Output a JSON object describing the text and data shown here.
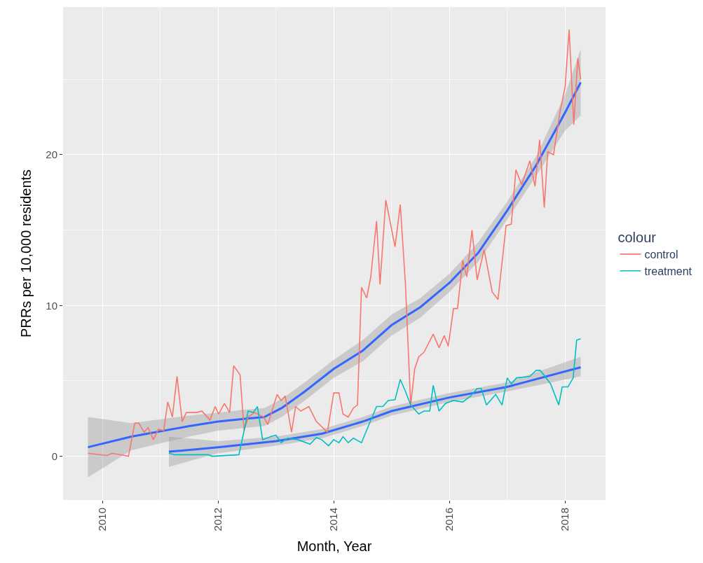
{
  "chart_data": {
    "type": "line",
    "xlabel": "Month, Year",
    "ylabel": "PRRs per 10,000 residents",
    "legend_title": "colour",
    "legend": "right",
    "grid": true,
    "xlim": [
      2009.32,
      2018.7
    ],
    "xticks": [
      2010,
      2012,
      2014,
      2016,
      2018
    ],
    "ylim": [
      -2.9,
      29.8
    ],
    "yticks": [
      0,
      10,
      20
    ],
    "series": [
      {
        "color": "#3366ff",
        "x": [
          2009.75,
          2010.5,
          2011.5,
          2012.0,
          2012.5,
          2012.8,
          2013.1,
          2013.5,
          2014.0,
          2014.5,
          2015.0,
          2015.5,
          2016.0,
          2016.5,
          2017.0,
          2017.5,
          2018.0,
          2018.27
        ],
        "values": [
          0.6,
          1.3,
          2.0,
          2.3,
          2.5,
          2.6,
          3.2,
          4.3,
          5.8,
          7.0,
          8.7,
          9.9,
          11.5,
          13.5,
          16.3,
          19.3,
          22.8,
          24.8
        ],
        "lower": [
          -1.4,
          0.4,
          1.3,
          1.7,
          1.9,
          2.0,
          2.6,
          3.7,
          5.2,
          6.3,
          8.0,
          9.2,
          10.9,
          12.9,
          15.7,
          18.6,
          21.6,
          22.6
        ],
        "upper": [
          2.6,
          2.2,
          2.7,
          2.9,
          3.1,
          3.2,
          3.8,
          4.9,
          6.4,
          7.7,
          9.4,
          10.5,
          12.1,
          14.2,
          16.9,
          19.9,
          24.0,
          27.0
        ]
      },
      {
        "color": "#3366ff",
        "x": [
          2011.15,
          2012.0,
          2013.0,
          2013.8,
          2014.5,
          2015.0,
          2016.0,
          2017.0,
          2018.27
        ],
        "values": [
          0.3,
          0.6,
          1.0,
          1.5,
          2.3,
          3.0,
          3.9,
          4.6,
          5.9
        ],
        "lower": [
          -0.7,
          0.2,
          0.7,
          1.2,
          2.0,
          2.7,
          3.6,
          4.3,
          5.3
        ],
        "upper": [
          1.3,
          1.0,
          1.3,
          1.8,
          2.6,
          3.3,
          4.2,
          4.9,
          6.6
        ]
      },
      {
        "name": "control",
        "color": "#f8766d",
        "x": [
          2009.75,
          2010.08,
          2010.17,
          2010.45,
          2010.56,
          2010.63,
          2010.72,
          2010.79,
          2010.88,
          2010.97,
          2011.06,
          2011.13,
          2011.21,
          2011.29,
          2011.38,
          2011.45,
          2011.63,
          2011.72,
          2011.86,
          2011.95,
          2012.01,
          2012.11,
          2012.2,
          2012.27,
          2012.38,
          2012.45,
          2012.52,
          2012.63,
          2012.79,
          2012.86,
          2013.02,
          2013.09,
          2013.16,
          2013.27,
          2013.34,
          2013.43,
          2013.57,
          2013.7,
          2013.89,
          2014.0,
          2014.09,
          2014.16,
          2014.25,
          2014.34,
          2014.41,
          2014.48,
          2014.57,
          2014.64,
          2014.74,
          2014.8,
          2014.9,
          2015.06,
          2015.15,
          2015.24,
          2015.33,
          2015.4,
          2015.47,
          2015.56,
          2015.72,
          2015.82,
          2015.91,
          2015.98,
          2016.07,
          2016.14,
          2016.23,
          2016.3,
          2016.39,
          2016.48,
          2016.6,
          2016.74,
          2016.84,
          2016.98,
          2017.07,
          2017.15,
          2017.25,
          2017.39,
          2017.48,
          2017.56,
          2017.64,
          2017.7,
          2017.8,
          2017.91,
          2018.0,
          2018.07,
          2018.15,
          2018.22,
          2018.27
        ],
        "values": [
          0.2,
          0.05,
          0.2,
          0.0,
          2.2,
          2.2,
          1.6,
          1.9,
          1.1,
          1.8,
          1.7,
          3.6,
          2.6,
          5.3,
          2.3,
          2.9,
          2.9,
          3.0,
          2.4,
          3.3,
          2.8,
          3.5,
          2.9,
          6.0,
          5.4,
          1.7,
          2.6,
          2.9,
          2.6,
          2.1,
          4.1,
          3.7,
          4.0,
          1.6,
          3.3,
          3.0,
          3.3,
          2.3,
          1.6,
          4.2,
          4.2,
          2.8,
          2.6,
          3.2,
          3.4,
          11.2,
          10.5,
          11.9,
          15.6,
          11.4,
          17.0,
          13.9,
          16.7,
          11.4,
          3.4,
          5.8,
          6.6,
          6.9,
          8.1,
          7.2,
          8.0,
          7.3,
          9.8,
          9.8,
          13.0,
          11.9,
          15.0,
          11.7,
          13.7,
          10.9,
          10.4,
          15.3,
          15.4,
          19.0,
          18.0,
          19.6,
          17.9,
          21.0,
          16.5,
          20.2,
          20.0,
          22.8,
          24.5,
          28.3,
          22.0,
          26.4,
          25.0
        ]
      },
      {
        "name": "treatment",
        "color": "#00bfc4",
        "x": [
          2011.15,
          2011.26,
          2011.83,
          2011.9,
          2012.36,
          2012.45,
          2012.52,
          2012.61,
          2012.68,
          2012.77,
          2012.91,
          2013.0,
          2013.09,
          2013.2,
          2013.38,
          2013.59,
          2013.7,
          2013.79,
          2013.91,
          2014.0,
          2014.09,
          2014.16,
          2014.25,
          2014.34,
          2014.48,
          2014.62,
          2014.74,
          2014.85,
          2014.94,
          2015.06,
          2015.15,
          2015.24,
          2015.33,
          2015.47,
          2015.56,
          2015.66,
          2015.72,
          2015.82,
          2015.93,
          2016.07,
          2016.23,
          2016.37,
          2016.48,
          2016.55,
          2016.64,
          2016.8,
          2016.91,
          2017.0,
          2017.07,
          2017.16,
          2017.39,
          2017.5,
          2017.57,
          2017.75,
          2017.89,
          2017.95,
          2018.05,
          2018.14,
          2018.2,
          2018.27
        ],
        "values": [
          0.2,
          0.1,
          0.1,
          0.0,
          0.1,
          1.7,
          3.0,
          2.9,
          3.3,
          1.1,
          1.3,
          1.4,
          0.9,
          1.2,
          1.1,
          0.8,
          1.25,
          1.1,
          0.7,
          1.1,
          0.9,
          1.3,
          0.9,
          1.2,
          0.9,
          2.2,
          3.3,
          3.3,
          3.7,
          3.75,
          5.1,
          4.3,
          3.4,
          2.8,
          3.0,
          3.0,
          4.7,
          3.0,
          3.5,
          3.7,
          3.6,
          4.0,
          4.5,
          4.5,
          3.4,
          4.1,
          3.4,
          5.2,
          4.8,
          5.2,
          5.3,
          5.7,
          5.7,
          4.8,
          3.4,
          4.6,
          4.6,
          5.2,
          7.7,
          7.8
        ]
      }
    ]
  }
}
